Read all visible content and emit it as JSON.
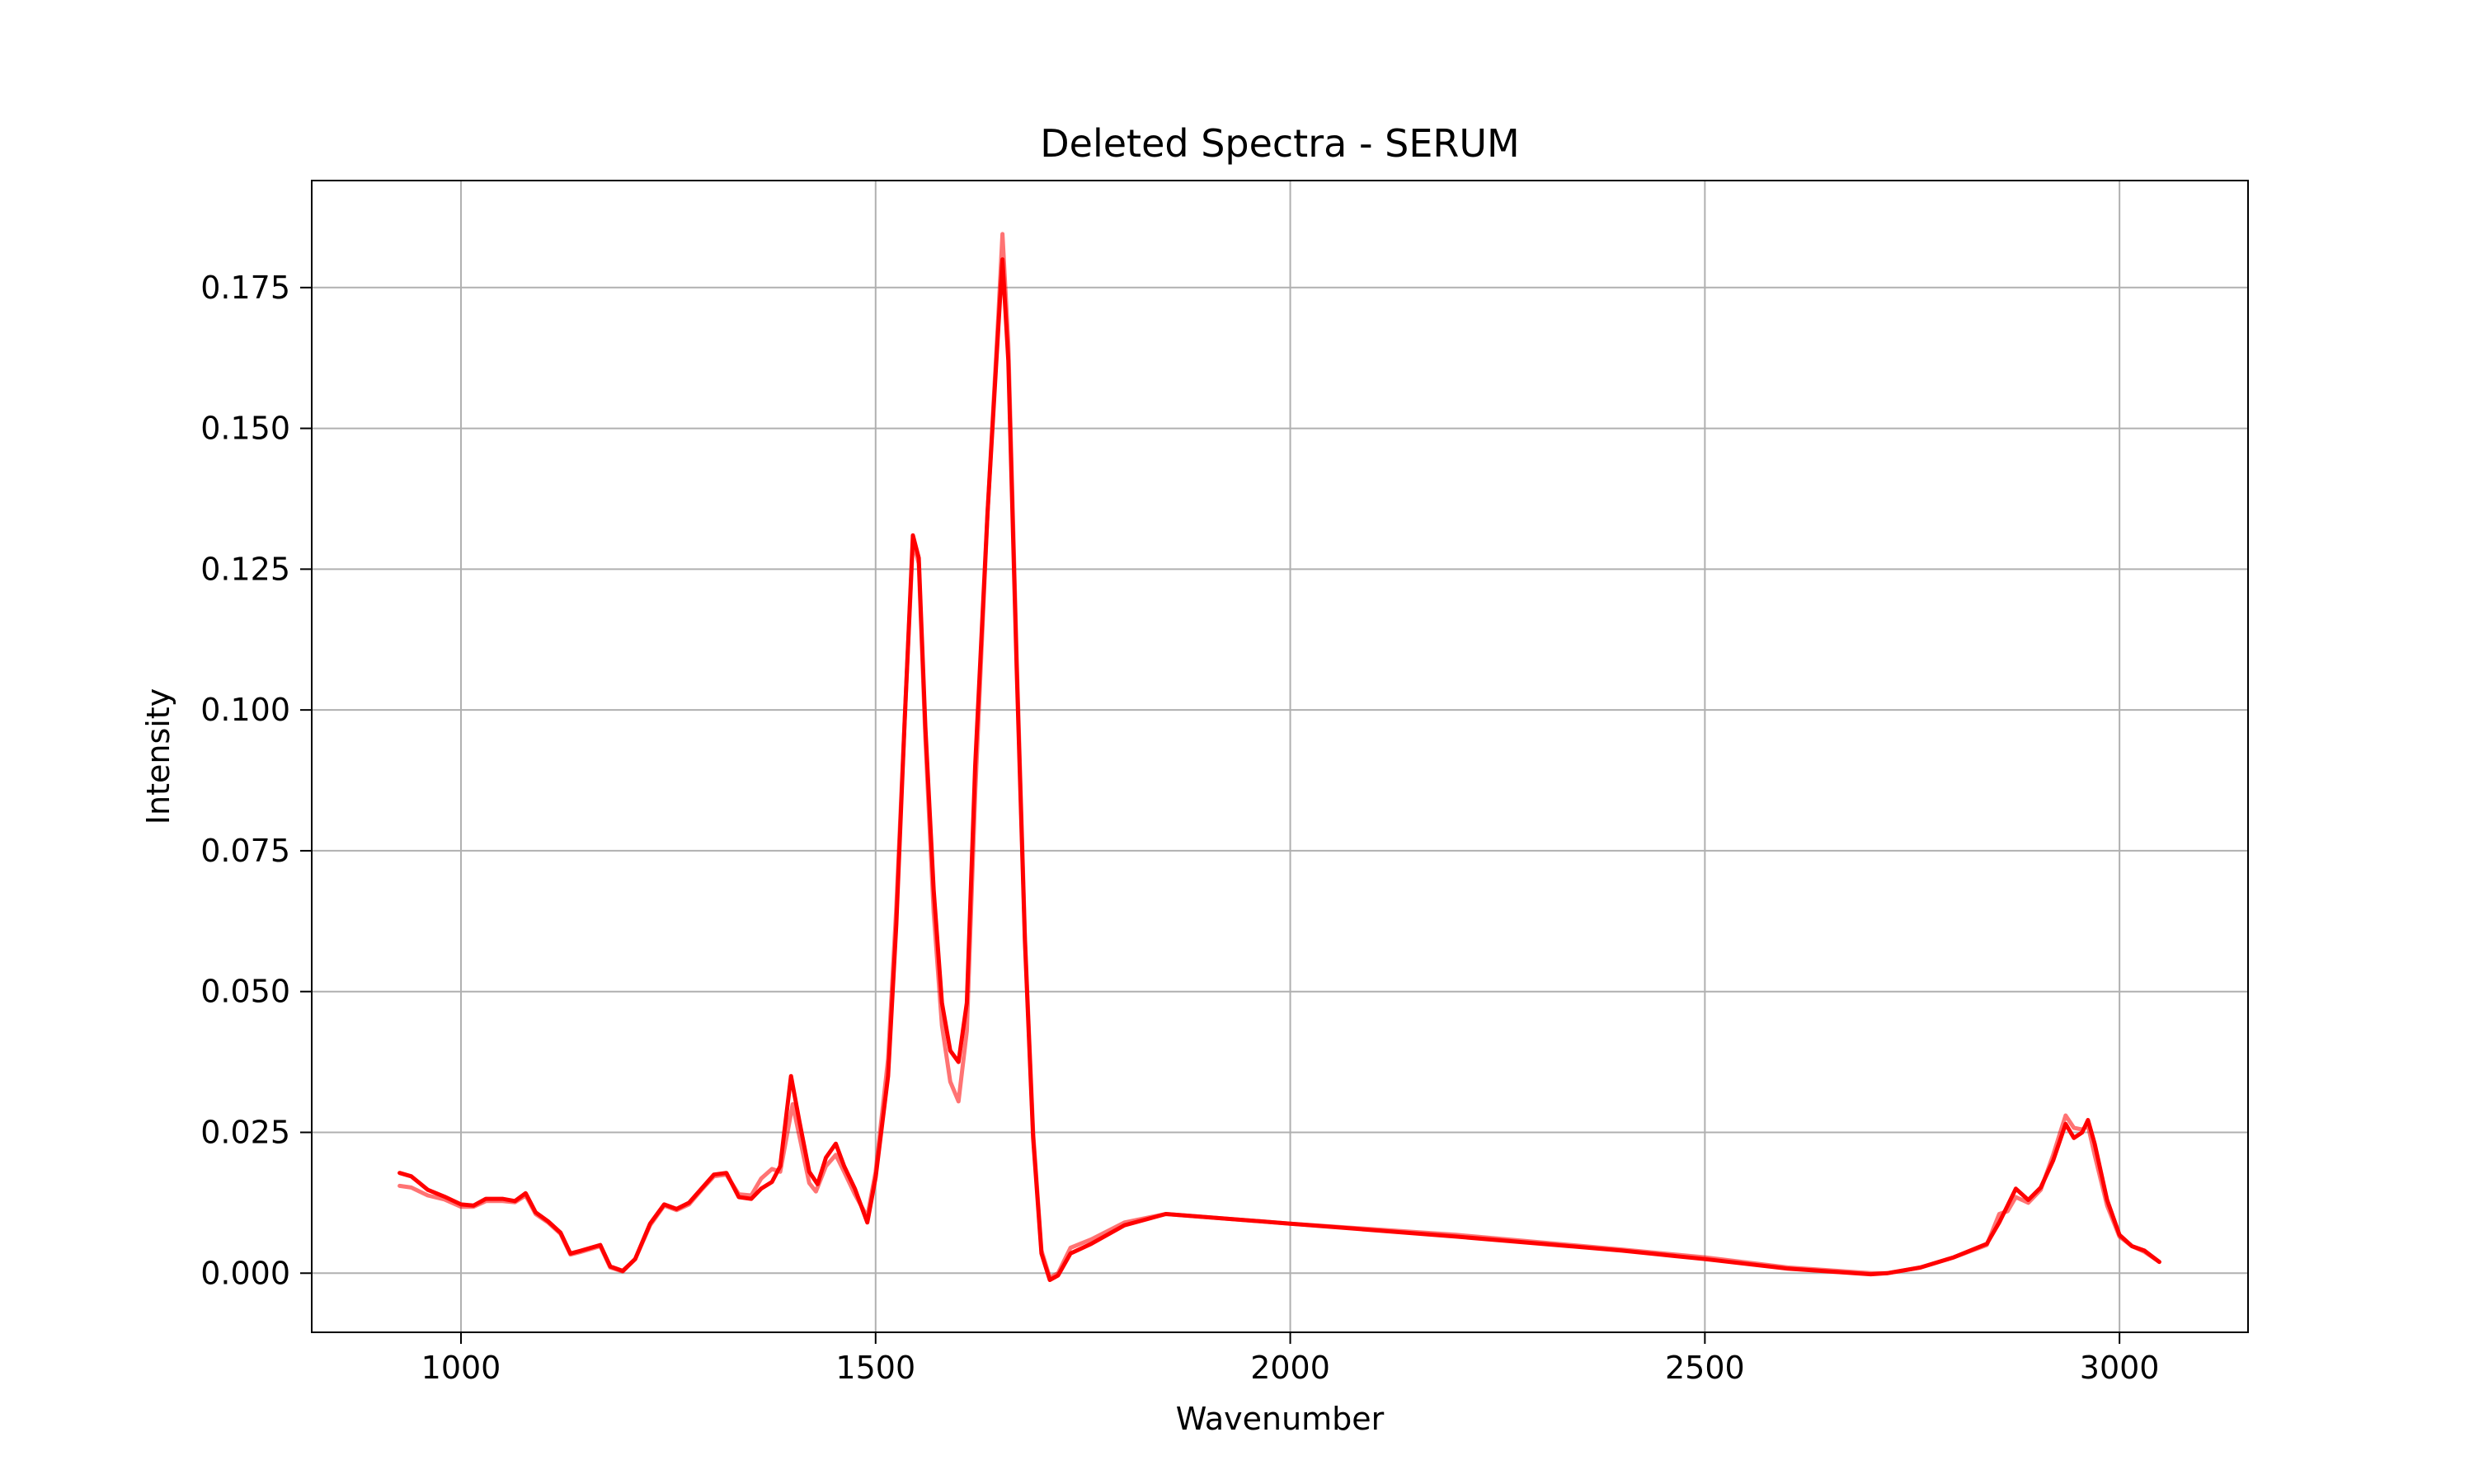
{
  "chart_data": {
    "type": "line",
    "title": "Deleted Spectra - SERUM",
    "xlabel": "Wavenumber",
    "ylabel": "Intensity",
    "xlim": [
      820,
      3155
    ],
    "ylim": [
      -0.0105,
      0.194
    ],
    "x_ticks": [
      1000,
      1500,
      2000,
      2500,
      3000
    ],
    "y_ticks": [
      0.0,
      0.025,
      0.05,
      0.075,
      0.1,
      0.125,
      0.15,
      0.175
    ],
    "x_tick_labels": [
      "1000",
      "1500",
      "2000",
      "2500",
      "3000"
    ],
    "y_tick_labels": [
      "0.000",
      "0.025",
      "0.050",
      "0.075",
      "0.100",
      "0.125",
      "0.150",
      "0.175"
    ],
    "grid": true,
    "legend": "none",
    "line_color": "#ff0000",
    "series": [
      {
        "opacity": 0.55,
        "points": [
          [
            926,
            0.0155
          ],
          [
            940,
            0.0152
          ],
          [
            960,
            0.0138
          ],
          [
            980,
            0.0131
          ],
          [
            1000,
            0.0118
          ],
          [
            1015,
            0.0118
          ],
          [
            1030,
            0.0128
          ],
          [
            1050,
            0.0128
          ],
          [
            1065,
            0.0126
          ],
          [
            1078,
            0.0138
          ],
          [
            1090,
            0.0105
          ],
          [
            1105,
            0.009
          ],
          [
            1120,
            0.007
          ],
          [
            1132,
            0.0033
          ],
          [
            1145,
            0.0038
          ],
          [
            1168,
            0.0048
          ],
          [
            1180,
            0.001
          ],
          [
            1195,
            0.0003
          ],
          [
            1210,
            0.0025
          ],
          [
            1228,
            0.0085
          ],
          [
            1245,
            0.012
          ],
          [
            1260,
            0.0112
          ],
          [
            1275,
            0.0122
          ],
          [
            1290,
            0.0148
          ],
          [
            1305,
            0.0172
          ],
          [
            1320,
            0.0175
          ],
          [
            1335,
            0.014
          ],
          [
            1350,
            0.0138
          ],
          [
            1362,
            0.0168
          ],
          [
            1375,
            0.0185
          ],
          [
            1385,
            0.018
          ],
          [
            1400,
            0.03
          ],
          [
            1410,
            0.023
          ],
          [
            1420,
            0.016
          ],
          [
            1428,
            0.0145
          ],
          [
            1440,
            0.019
          ],
          [
            1452,
            0.021
          ],
          [
            1462,
            0.018
          ],
          [
            1475,
            0.014
          ],
          [
            1490,
            0.01
          ],
          [
            1500,
            0.018
          ],
          [
            1515,
            0.038
          ],
          [
            1525,
            0.065
          ],
          [
            1535,
            0.098
          ],
          [
            1545,
            0.13
          ],
          [
            1552,
            0.126
          ],
          [
            1560,
            0.095
          ],
          [
            1570,
            0.064
          ],
          [
            1580,
            0.044
          ],
          [
            1590,
            0.034
          ],
          [
            1600,
            0.0305
          ],
          [
            1610,
            0.043
          ],
          [
            1620,
            0.085
          ],
          [
            1635,
            0.135
          ],
          [
            1648,
            0.17
          ],
          [
            1653,
            0.1845
          ],
          [
            1660,
            0.165
          ],
          [
            1670,
            0.11
          ],
          [
            1680,
            0.06
          ],
          [
            1690,
            0.025
          ],
          [
            1700,
            0.004
          ],
          [
            1710,
            -0.0008
          ],
          [
            1720,
            0.0
          ],
          [
            1735,
            0.0045
          ],
          [
            1760,
            0.006
          ],
          [
            1800,
            0.009
          ],
          [
            1850,
            0.0105
          ],
          [
            2000,
            0.0088
          ],
          [
            2200,
            0.0068
          ],
          [
            2400,
            0.0042
          ],
          [
            2500,
            0.0028
          ],
          [
            2600,
            0.001
          ],
          [
            2700,
            0.0
          ],
          [
            2720,
            0.0
          ],
          [
            2760,
            0.001
          ],
          [
            2800,
            0.0028
          ],
          [
            2840,
            0.005
          ],
          [
            2855,
            0.0105
          ],
          [
            2865,
            0.011
          ],
          [
            2875,
            0.0135
          ],
          [
            2890,
            0.0125
          ],
          [
            2905,
            0.0148
          ],
          [
            2920,
            0.021
          ],
          [
            2935,
            0.028
          ],
          [
            2945,
            0.0258
          ],
          [
            2955,
            0.0255
          ],
          [
            2962,
            0.0262
          ],
          [
            2970,
            0.021
          ],
          [
            2985,
            0.012
          ],
          [
            3000,
            0.0065
          ],
          [
            3015,
            0.0048
          ],
          [
            3030,
            0.0038
          ],
          [
            3048,
            0.002
          ]
        ]
      },
      {
        "opacity": 1.0,
        "points": [
          [
            926,
            0.0178
          ],
          [
            940,
            0.0172
          ],
          [
            960,
            0.0148
          ],
          [
            980,
            0.0136
          ],
          [
            1000,
            0.0122
          ],
          [
            1015,
            0.012
          ],
          [
            1030,
            0.0132
          ],
          [
            1050,
            0.0132
          ],
          [
            1065,
            0.0128
          ],
          [
            1078,
            0.0142
          ],
          [
            1090,
            0.0108
          ],
          [
            1105,
            0.0092
          ],
          [
            1120,
            0.0072
          ],
          [
            1132,
            0.0035
          ],
          [
            1145,
            0.004
          ],
          [
            1168,
            0.005
          ],
          [
            1180,
            0.0012
          ],
          [
            1195,
            0.0004
          ],
          [
            1210,
            0.0025
          ],
          [
            1228,
            0.0088
          ],
          [
            1245,
            0.0122
          ],
          [
            1260,
            0.0114
          ],
          [
            1275,
            0.0125
          ],
          [
            1290,
            0.015
          ],
          [
            1305,
            0.0175
          ],
          [
            1320,
            0.0178
          ],
          [
            1335,
            0.0135
          ],
          [
            1350,
            0.0132
          ],
          [
            1362,
            0.015
          ],
          [
            1375,
            0.0162
          ],
          [
            1385,
            0.019
          ],
          [
            1398,
            0.035
          ],
          [
            1408,
            0.027
          ],
          [
            1420,
            0.018
          ],
          [
            1430,
            0.0158
          ],
          [
            1440,
            0.0205
          ],
          [
            1452,
            0.023
          ],
          [
            1462,
            0.019
          ],
          [
            1475,
            0.015
          ],
          [
            1490,
            0.009
          ],
          [
            1500,
            0.017
          ],
          [
            1515,
            0.035
          ],
          [
            1525,
            0.062
          ],
          [
            1535,
            0.098
          ],
          [
            1545,
            0.131
          ],
          [
            1552,
            0.127
          ],
          [
            1560,
            0.097
          ],
          [
            1570,
            0.068
          ],
          [
            1580,
            0.048
          ],
          [
            1590,
            0.0395
          ],
          [
            1600,
            0.0375
          ],
          [
            1610,
            0.048
          ],
          [
            1620,
            0.09
          ],
          [
            1635,
            0.135
          ],
          [
            1648,
            0.168
          ],
          [
            1653,
            0.18
          ],
          [
            1660,
            0.162
          ],
          [
            1670,
            0.108
          ],
          [
            1680,
            0.059
          ],
          [
            1690,
            0.024
          ],
          [
            1700,
            0.0035
          ],
          [
            1710,
            -0.0012
          ],
          [
            1720,
            -0.0004
          ],
          [
            1735,
            0.0035
          ],
          [
            1760,
            0.0052
          ],
          [
            1800,
            0.0085
          ],
          [
            1850,
            0.0105
          ],
          [
            2000,
            0.0088
          ],
          [
            2200,
            0.0065
          ],
          [
            2400,
            0.004
          ],
          [
            2500,
            0.0025
          ],
          [
            2600,
            0.0008
          ],
          [
            2700,
            -0.0002
          ],
          [
            2720,
            0.0
          ],
          [
            2760,
            0.001
          ],
          [
            2800,
            0.0028
          ],
          [
            2840,
            0.0052
          ],
          [
            2855,
            0.009
          ],
          [
            2865,
            0.012
          ],
          [
            2875,
            0.015
          ],
          [
            2890,
            0.013
          ],
          [
            2905,
            0.0152
          ],
          [
            2920,
            0.02
          ],
          [
            2935,
            0.0265
          ],
          [
            2945,
            0.024
          ],
          [
            2955,
            0.025
          ],
          [
            2962,
            0.0272
          ],
          [
            2970,
            0.023
          ],
          [
            2985,
            0.013
          ],
          [
            3000,
            0.0068
          ],
          [
            3015,
            0.0048
          ],
          [
            3030,
            0.004
          ],
          [
            3048,
            0.002
          ]
        ]
      }
    ]
  }
}
